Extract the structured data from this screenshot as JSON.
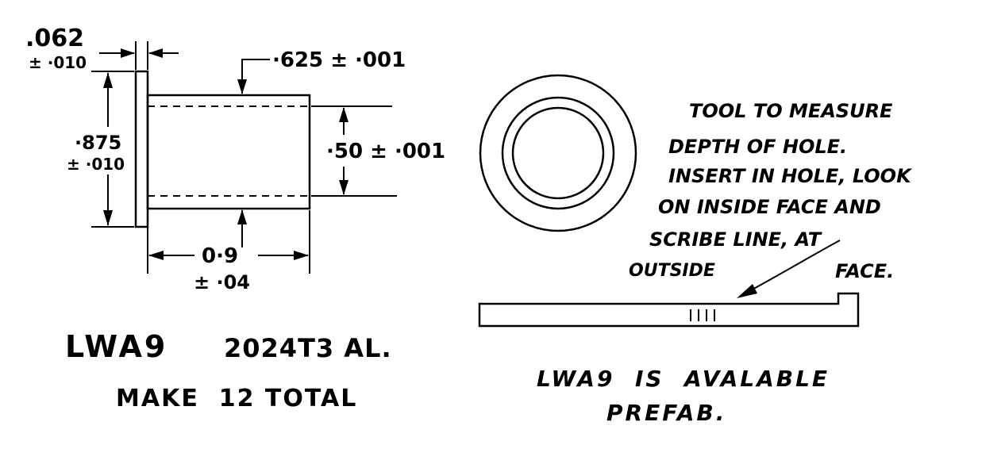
{
  "dimensions": {
    "flange_thickness": ".062",
    "flange_thickness_tol": "± ·010",
    "flange_diameter": "·875",
    "flange_diameter_tol": "± ·010",
    "outer_diameter": "·625 ± ·001",
    "inner_diameter": "·50 ± ·001",
    "length": "0·9",
    "length_tol": "± ·04"
  },
  "part": {
    "designation": "LWA9",
    "material": "2024T3 AL.",
    "quantity_note": "MAKE  12 TOTAL"
  },
  "note": {
    "lines": [
      "TOOL TO MEASURE",
      "DEPTH OF HOLE.",
      "INSERT IN HOLE, LOOK",
      "ON INSIDE FACE AND",
      "SCRIBE LINE, AT",
      "OUTSIDE",
      "FACE."
    ]
  },
  "prefab_note": {
    "line1": "LWA9  IS  AVALABLE",
    "line2": "PREFAB."
  }
}
